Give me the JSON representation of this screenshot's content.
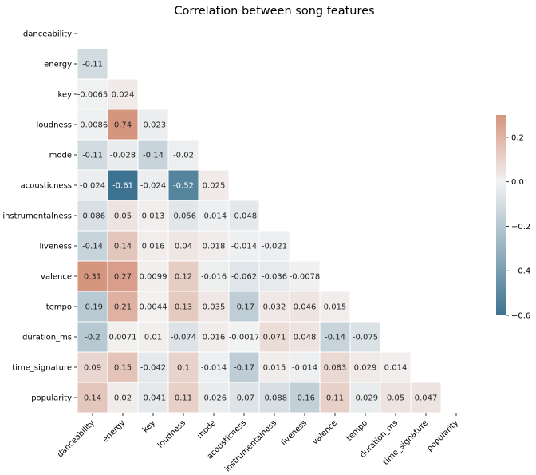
{
  "chart_data": {
    "type": "heatmap",
    "title": "Correlation between song features",
    "xlabel": "",
    "ylabel": "",
    "mask": "upper-triangle-including-diagonal",
    "labels": [
      "danceability",
      "energy",
      "key",
      "loudness",
      "mode",
      "acousticness",
      "instrumentalness",
      "liveness",
      "valence",
      "tempo",
      "duration_ms",
      "time_signature",
      "popularity"
    ],
    "matrix": [
      [
        null,
        null,
        null,
        null,
        null,
        null,
        null,
        null,
        null,
        null,
        null,
        null,
        null
      ],
      [
        -0.11,
        null,
        null,
        null,
        null,
        null,
        null,
        null,
        null,
        null,
        null,
        null,
        null
      ],
      [
        -0.0065,
        0.024,
        null,
        null,
        null,
        null,
        null,
        null,
        null,
        null,
        null,
        null,
        null
      ],
      [
        -0.0086,
        0.74,
        -0.023,
        null,
        null,
        null,
        null,
        null,
        null,
        null,
        null,
        null,
        null
      ],
      [
        -0.11,
        -0.028,
        -0.14,
        -0.02,
        null,
        null,
        null,
        null,
        null,
        null,
        null,
        null,
        null
      ],
      [
        -0.024,
        -0.61,
        -0.024,
        -0.52,
        0.025,
        null,
        null,
        null,
        null,
        null,
        null,
        null,
        null
      ],
      [
        -0.086,
        0.05,
        0.013,
        -0.056,
        -0.014,
        -0.048,
        null,
        null,
        null,
        null,
        null,
        null,
        null
      ],
      [
        -0.14,
        0.14,
        0.016,
        0.04,
        0.018,
        -0.014,
        -0.021,
        null,
        null,
        null,
        null,
        null,
        null
      ],
      [
        0.31,
        0.27,
        0.0099,
        0.12,
        -0.016,
        -0.062,
        -0.036,
        -0.0078,
        null,
        null,
        null,
        null,
        null
      ],
      [
        -0.19,
        0.21,
        0.0044,
        0.13,
        0.035,
        -0.17,
        0.032,
        0.046,
        0.015,
        null,
        null,
        null,
        null
      ],
      [
        -0.2,
        0.0071,
        0.01,
        -0.074,
        0.016,
        -0.0017,
        0.071,
        0.048,
        -0.14,
        -0.075,
        null,
        null,
        null
      ],
      [
        0.09,
        0.15,
        -0.042,
        0.1,
        -0.014,
        -0.17,
        0.015,
        -0.014,
        0.083,
        0.029,
        0.014,
        null,
        null
      ],
      [
        0.14,
        0.02,
        -0.041,
        0.11,
        -0.026,
        -0.07,
        -0.088,
        -0.16,
        0.11,
        -0.029,
        0.05,
        0.047,
        null
      ]
    ],
    "colorbar": {
      "vmin": -0.6,
      "vmax": 0.3,
      "ticks": [
        0.2,
        0.0,
        -0.2,
        -0.4,
        -0.6
      ],
      "tick_labels": [
        "0.2",
        "0.0",
        "−0.2",
        "−0.4",
        "−0.6"
      ],
      "colormap": "diverging",
      "low_color": "#3d7390",
      "mid_color": "#f2f2f2",
      "high_color": "#d5957f"
    }
  }
}
